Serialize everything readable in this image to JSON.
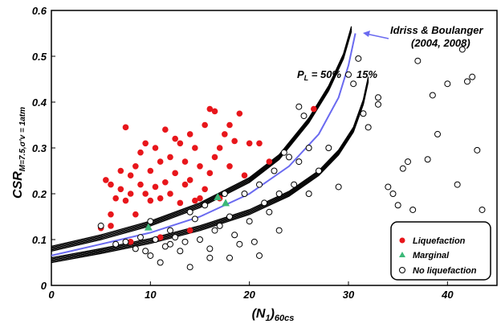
{
  "chart_data": {
    "type": "scatter",
    "xlabel_main": "(N",
    "xlabel_sub1": "1",
    "xlabel_close": ")",
    "xlabel_sub2": "60cs",
    "ylabel_main": "CSR",
    "ylabel_sub": "M=7.5,σ'v = 1atm",
    "xlim": [
      0,
      45
    ],
    "ylim": [
      0,
      0.6
    ],
    "xticks": [
      "0",
      "10",
      "20",
      "30",
      "40"
    ],
    "yticks": [
      "0",
      "0.1",
      "0.2",
      "0.3",
      "0.4",
      "0.5",
      "0.6"
    ],
    "annotations": {
      "pl_main": "P",
      "pl_sub": "L",
      "pl_val": " = 50%",
      "pl15": "15%",
      "source_line1": "Idriss & Boulanger",
      "source_line2": "(2004, 2008)"
    },
    "legend": {
      "position": "bottom-right",
      "entries": [
        {
          "label": "Liquefaction",
          "color": "#e8161b",
          "marker": "circle-filled"
        },
        {
          "label": "Marginal",
          "color": "#3cb878",
          "marker": "triangle"
        },
        {
          "label": "No liquefaction",
          "color": "#000000",
          "marker": "circle-open"
        }
      ]
    },
    "curves": {
      "ib_curve_color": "#6a6af0",
      "ib_curve": [
        [
          0,
          0.065
        ],
        [
          5,
          0.09
        ],
        [
          10,
          0.115
        ],
        [
          15,
          0.15
        ],
        [
          20,
          0.2
        ],
        [
          24,
          0.26
        ],
        [
          27,
          0.33
        ],
        [
          29,
          0.41
        ],
        [
          30,
          0.48
        ],
        [
          30.7,
          0.55
        ]
      ],
      "pl50_curve": [
        [
          0,
          0.08
        ],
        [
          5,
          0.105
        ],
        [
          10,
          0.135
        ],
        [
          15,
          0.175
        ],
        [
          20,
          0.23
        ],
        [
          23,
          0.28
        ],
        [
          26,
          0.36
        ],
        [
          28,
          0.43
        ],
        [
          29.5,
          0.5
        ],
        [
          30.3,
          0.56
        ]
      ],
      "pl15_curve": [
        [
          0,
          0.055
        ],
        [
          5,
          0.075
        ],
        [
          10,
          0.097
        ],
        [
          15,
          0.125
        ],
        [
          20,
          0.16
        ],
        [
          24,
          0.2
        ],
        [
          27,
          0.245
        ],
        [
          29,
          0.29
        ],
        [
          30.5,
          0.34
        ],
        [
          31.5,
          0.4
        ],
        [
          32,
          0.45
        ]
      ]
    },
    "series": [
      {
        "name": "Liquefaction",
        "color": "#e8161b",
        "points": [
          [
            5,
            0.125
          ],
          [
            5.5,
            0.23
          ],
          [
            6,
            0.22
          ],
          [
            6,
            0.155
          ],
          [
            6.5,
            0.19
          ],
          [
            7,
            0.21
          ],
          [
            7,
            0.25
          ],
          [
            7.5,
            0.345
          ],
          [
            7.5,
            0.185
          ],
          [
            8,
            0.24
          ],
          [
            8,
            0.2
          ],
          [
            8.5,
            0.155
          ],
          [
            8.5,
            0.26
          ],
          [
            9,
            0.29
          ],
          [
            9,
            0.22
          ],
          [
            9.5,
            0.31
          ],
          [
            9.5,
            0.2
          ],
          [
            10,
            0.25
          ],
          [
            10,
            0.185
          ],
          [
            10.5,
            0.3
          ],
          [
            10.5,
            0.215
          ],
          [
            11,
            0.27
          ],
          [
            11,
            0.19
          ],
          [
            11.5,
            0.225
          ],
          [
            11.5,
            0.34
          ],
          [
            12,
            0.28
          ],
          [
            12,
            0.2
          ],
          [
            12.5,
            0.32
          ],
          [
            12.5,
            0.245
          ],
          [
            13,
            0.31
          ],
          [
            13,
            0.18
          ],
          [
            13.5,
            0.27
          ],
          [
            13.5,
            0.22
          ],
          [
            14,
            0.23
          ],
          [
            14,
            0.33
          ],
          [
            14.5,
            0.185
          ],
          [
            14.5,
            0.3
          ],
          [
            15,
            0.26
          ],
          [
            15,
            0.19
          ],
          [
            15.5,
            0.35
          ],
          [
            15.5,
            0.21
          ],
          [
            16,
            0.385
          ],
          [
            16,
            0.245
          ],
          [
            16.5,
            0.28
          ],
          [
            16.5,
            0.38
          ],
          [
            17,
            0.3
          ],
          [
            17,
            0.19
          ],
          [
            17.5,
            0.33
          ],
          [
            18,
            0.35
          ],
          [
            18,
            0.26
          ],
          [
            18.5,
            0.315
          ],
          [
            19,
            0.375
          ],
          [
            19.5,
            0.24
          ],
          [
            20,
            0.31
          ],
          [
            21,
            0.31
          ],
          [
            22,
            0.27
          ],
          [
            26.5,
            0.385
          ],
          [
            8,
            0.095
          ],
          [
            11,
            0.105
          ],
          [
            14,
            0.12
          ],
          [
            6,
            0.13
          ]
        ]
      },
      {
        "name": "Marginal",
        "color": "#3cb878",
        "points": [
          [
            9.8,
            0.127
          ],
          [
            16.8,
            0.193
          ],
          [
            17.6,
            0.18
          ]
        ]
      },
      {
        "name": "No liquefaction",
        "color": "#000000",
        "points": [
          [
            5,
            0.13
          ],
          [
            6.5,
            0.09
          ],
          [
            7.5,
            0.095
          ],
          [
            8.5,
            0.08
          ],
          [
            9,
            0.105
          ],
          [
            9.5,
            0.075
          ],
          [
            10,
            0.14
          ],
          [
            10,
            0.065
          ],
          [
            10.5,
            0.1
          ],
          [
            11,
            0.05
          ],
          [
            11.5,
            0.085
          ],
          [
            12,
            0.12
          ],
          [
            12,
            0.09
          ],
          [
            12.5,
            0.105
          ],
          [
            13,
            0.075
          ],
          [
            13.5,
            0.095
          ],
          [
            14,
            0.16
          ],
          [
            14.5,
            0.145
          ],
          [
            15,
            0.1
          ],
          [
            15.5,
            0.175
          ],
          [
            16,
            0.08
          ],
          [
            16.5,
            0.12
          ],
          [
            17,
            0.13
          ],
          [
            17.5,
            0.2
          ],
          [
            18,
            0.15
          ],
          [
            18.5,
            0.11
          ],
          [
            19,
            0.09
          ],
          [
            19.5,
            0.2
          ],
          [
            20,
            0.14
          ],
          [
            20.5,
            0.095
          ],
          [
            21,
            0.22
          ],
          [
            21.5,
            0.18
          ],
          [
            22,
            0.16
          ],
          [
            22.5,
            0.25
          ],
          [
            23,
            0.2
          ],
          [
            23.5,
            0.29
          ],
          [
            24,
            0.28
          ],
          [
            24.5,
            0.22
          ],
          [
            25,
            0.39
          ],
          [
            25,
            0.27
          ],
          [
            25.5,
            0.37
          ],
          [
            26,
            0.3
          ],
          [
            26,
            0.2
          ],
          [
            27,
            0.25
          ],
          [
            28,
            0.3
          ],
          [
            29,
            0.215
          ],
          [
            30,
            0.46
          ],
          [
            30.5,
            0.44
          ],
          [
            31,
            0.495
          ],
          [
            31.5,
            0.375
          ],
          [
            32,
            0.345
          ],
          [
            33,
            0.41
          ],
          [
            33,
            0.395
          ],
          [
            34,
            0.215
          ],
          [
            34.5,
            0.2
          ],
          [
            35,
            0.175
          ],
          [
            35.5,
            0.255
          ],
          [
            36,
            0.27
          ],
          [
            36.5,
            0.165
          ],
          [
            37,
            0.49
          ],
          [
            38,
            0.275
          ],
          [
            38.5,
            0.415
          ],
          [
            39,
            0.33
          ],
          [
            40,
            0.44
          ],
          [
            41,
            0.22
          ],
          [
            41.5,
            0.515
          ],
          [
            42,
            0.445
          ],
          [
            42.5,
            0.455
          ],
          [
            43,
            0.295
          ],
          [
            43.5,
            0.165
          ],
          [
            14,
            0.04
          ],
          [
            16,
            0.06
          ],
          [
            18,
            0.06
          ],
          [
            21,
            0.065
          ],
          [
            23,
            0.12
          ]
        ]
      }
    ]
  }
}
